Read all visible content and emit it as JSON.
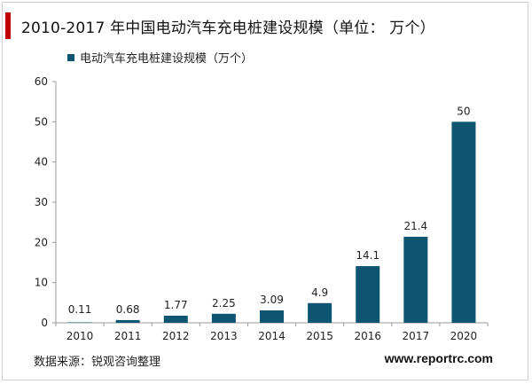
{
  "page": {
    "title": "2010-2017 年中国电动汽车充电桩建设规模（单位：  万个）",
    "source": "数据来源：锐观咨询整理",
    "site": "www.reportrc.com"
  },
  "chart_data": {
    "type": "bar",
    "title": "2010-2017 年中国电动汽车充电桩建设规模（单位：  万个）",
    "xlabel": "",
    "ylabel": "",
    "categories": [
      "2010",
      "2011",
      "2012",
      "2013",
      "2014",
      "2015",
      "2016",
      "2017",
      "2020"
    ],
    "series": [
      {
        "name": "电动汽车充电桩建设规模（万个）",
        "values": [
          0.11,
          0.68,
          1.77,
          2.25,
          3.09,
          4.9,
          14.1,
          21.4,
          50
        ],
        "labels": [
          "0.11",
          "0.68",
          "1.77",
          "2.25",
          "3.09",
          "4.9",
          "14.1",
          "21.4",
          "50"
        ]
      }
    ],
    "ylim": [
      0,
      60
    ],
    "yticks": [
      0,
      10,
      20,
      30,
      40,
      50,
      60
    ],
    "grid": false,
    "legend_position": "top-left",
    "colors": {
      "bar": "#0e5572"
    }
  }
}
